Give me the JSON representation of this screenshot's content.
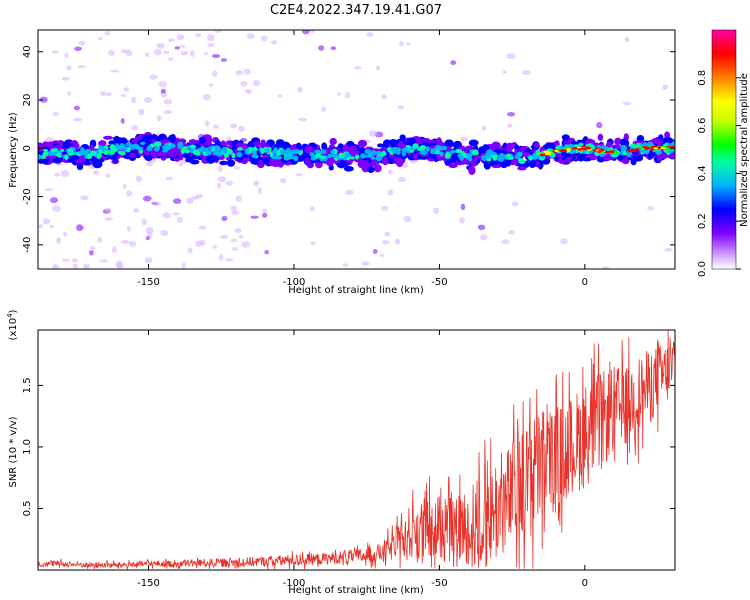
{
  "title": "C2E4.2022.347.19.41.G07",
  "chart_data": [
    {
      "type": "heatmap",
      "xlabel": "Height of straight line (km)",
      "ylabel": "Frequency (Hz)",
      "xlim": [
        -188,
        31
      ],
      "ylim": [
        -50,
        49
      ],
      "xticks": [
        -150,
        -100,
        -50,
        0
      ],
      "xtick_labels": [
        "-150",
        "-100",
        "-50",
        "0"
      ],
      "yticks": [
        -40,
        -20,
        0,
        20,
        40
      ],
      "ytick_labels": [
        "-40",
        "-20",
        "0",
        "20",
        "40"
      ],
      "colorbar": {
        "label": "Normalized spectral amplitude",
        "range": [
          0,
          1
        ],
        "ticks": [
          0.0,
          0.2,
          0.4,
          0.6,
          0.8
        ],
        "tick_labels": [
          "0.0",
          "0.2",
          "0.4",
          "0.6",
          "0.8"
        ],
        "colors": [
          "#ffffff",
          "#d8b0ff",
          "#8000ff",
          "#0000ff",
          "#00b4ff",
          "#00ffa0",
          "#00ff00",
          "#c8ff00",
          "#ffff00",
          "#ff8000",
          "#ff0000",
          "#ff00a0"
        ]
      },
      "ridge": [
        {
          "x": -188,
          "y": -2
        },
        {
          "x": -170,
          "y": -2
        },
        {
          "x": -150,
          "y": 1
        },
        {
          "x": -130,
          "y": -1
        },
        {
          "x": -110,
          "y": -2
        },
        {
          "x": -90,
          "y": -3
        },
        {
          "x": -70,
          "y": -3
        },
        {
          "x": -60,
          "y": 0
        },
        {
          "x": -50,
          "y": -1
        },
        {
          "x": -40,
          "y": -3
        },
        {
          "x": -30,
          "y": -3
        },
        {
          "x": -20,
          "y": -4
        },
        {
          "x": -10,
          "y": -1
        },
        {
          "x": 0,
          "y": 0
        },
        {
          "x": 10,
          "y": -2
        },
        {
          "x": 20,
          "y": 0
        },
        {
          "x": 31,
          "y": 0
        }
      ],
      "grid": false
    },
    {
      "type": "line",
      "xlabel": "Height of straight line (km)",
      "ylabel": "SNR (10 * v/v)",
      "yscale_label": "(x10",
      "yscale_exp": "4",
      "xlim": [
        -188,
        31
      ],
      "ylim": [
        0,
        1.95
      ],
      "xticks": [
        -150,
        -100,
        -50,
        0
      ],
      "xtick_labels": [
        "-150",
        "-100",
        "-50",
        "0"
      ],
      "yticks": [
        0.5,
        1.0,
        1.5
      ],
      "ytick_labels": [
        "0.5",
        "1.0",
        "1.5"
      ],
      "series": [
        {
          "color": "#e8322a",
          "x": [
            -188,
            -180,
            -170,
            -160,
            -150,
            -140,
            -130,
            -120,
            -110,
            -100,
            -90,
            -80,
            -75,
            -70,
            -65,
            -60,
            -55,
            -50,
            -45,
            -40,
            -35,
            -30,
            -25,
            -20,
            -15,
            -10,
            -5,
            0,
            5,
            10,
            15,
            20,
            25,
            31
          ],
          "y": [
            0.05,
            0.05,
            0.04,
            0.04,
            0.05,
            0.05,
            0.06,
            0.06,
            0.07,
            0.08,
            0.09,
            0.11,
            0.12,
            0.14,
            0.2,
            0.3,
            0.32,
            0.3,
            0.33,
            0.36,
            0.4,
            0.5,
            0.6,
            0.72,
            0.85,
            0.9,
            1.0,
            1.1,
            1.2,
            1.3,
            1.35,
            1.45,
            1.55,
            1.65
          ],
          "spread": [
            0.03,
            0.03,
            0.03,
            0.03,
            0.03,
            0.04,
            0.04,
            0.05,
            0.05,
            0.06,
            0.06,
            0.07,
            0.08,
            0.1,
            0.15,
            0.3,
            0.35,
            0.3,
            0.35,
            0.4,
            0.5,
            0.55,
            0.55,
            0.6,
            0.6,
            0.55,
            0.5,
            0.55,
            0.5,
            0.45,
            0.4,
            0.4,
            0.35,
            0.3
          ]
        }
      ],
      "grid": false
    }
  ]
}
